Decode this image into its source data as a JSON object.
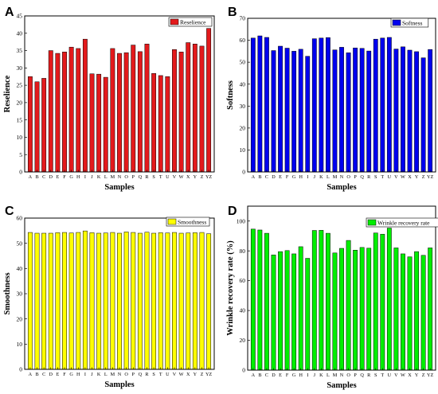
{
  "categories": [
    "A",
    "B",
    "C",
    "D",
    "E",
    "F",
    "G",
    "H",
    "I",
    "J",
    "K",
    "L",
    "M",
    "N",
    "O",
    "P",
    "Q",
    "R",
    "S",
    "T",
    "U",
    "V",
    "W",
    "X",
    "Y",
    "Z",
    "YZ"
  ],
  "xlabel": "Samples",
  "chart_data": [
    {
      "type": "bar",
      "letter": "A",
      "ylabel": "Reselience",
      "legend": "Reselience",
      "color": "#e31a1c",
      "ylim": [
        0,
        45
      ],
      "yticks": [
        0,
        5,
        10,
        15,
        20,
        25,
        30,
        35,
        40,
        45
      ],
      "values": [
        27.5,
        26.0,
        27.0,
        35.0,
        34.2,
        34.6,
        36.0,
        35.6,
        38.3,
        28.3,
        28.2,
        27.3,
        35.6,
        34.2,
        34.4,
        36.6,
        34.7,
        36.9,
        28.4,
        27.8,
        27.5,
        35.3,
        34.6,
        37.3,
        36.9,
        36.3,
        41.4
      ]
    },
    {
      "type": "bar",
      "letter": "B",
      "ylabel": "Softness",
      "legend": "Softness",
      "color": "#0000ee",
      "ylim": [
        0,
        70
      ],
      "yticks": [
        0,
        10,
        20,
        30,
        40,
        50,
        60,
        70
      ],
      "values": [
        61.0,
        62.0,
        61.3,
        55.3,
        57.3,
        56.4,
        55.0,
        55.9,
        52.7,
        60.7,
        61.0,
        61.2,
        55.6,
        56.8,
        54.3,
        56.5,
        56.3,
        55.1,
        60.5,
        61.0,
        61.3,
        56.0,
        57.0,
        55.5,
        54.8,
        52.0,
        55.8
      ]
    },
    {
      "type": "bar",
      "letter": "C",
      "ylabel": "Smoothness",
      "legend": "Smoothness",
      "color": "#ffff00",
      "ylim": [
        0,
        60
      ],
      "yticks": [
        0,
        10,
        20,
        30,
        40,
        50,
        60
      ],
      "values": [
        54.3,
        54.0,
        54.0,
        54.0,
        54.2,
        54.3,
        54.1,
        54.3,
        54.9,
        54.2,
        54.0,
        54.1,
        54.3,
        54.0,
        54.5,
        54.3,
        54.0,
        54.4,
        54.0,
        54.2,
        54.1,
        54.3,
        54.0,
        54.1,
        54.2,
        54.3,
        53.8
      ]
    },
    {
      "type": "bar",
      "letter": "D",
      "ylabel": "Wrinkle recovery rate (%)",
      "legend": "Wrinkle recovery rate",
      "color": "#00ee00",
      "ylim": [
        0,
        110
      ],
      "yticks": [
        0,
        20,
        40,
        60,
        80,
        100
      ],
      "values": [
        94.6,
        94.0,
        91.8,
        77.3,
        79.5,
        80.2,
        78.0,
        82.8,
        75.0,
        93.7,
        93.8,
        91.8,
        78.6,
        81.7,
        87.0,
        80.5,
        82.3,
        81.8,
        92.0,
        91.2,
        95.3,
        82.0,
        78.0,
        76.0,
        79.5,
        77.0,
        82.0
      ]
    }
  ]
}
